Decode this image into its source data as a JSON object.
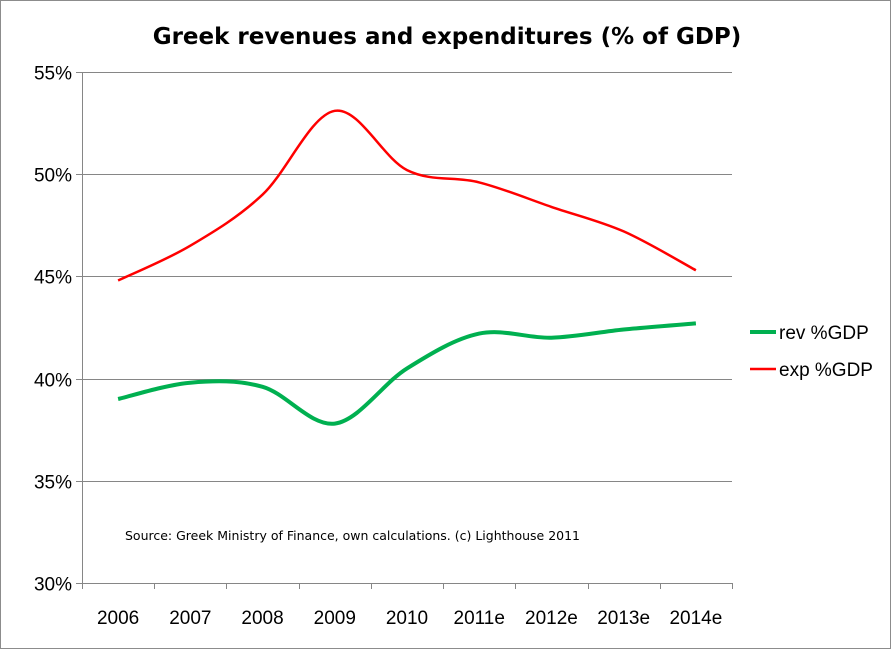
{
  "chart_data": {
    "type": "line",
    "title": "Greek revenues and expenditures (% of GDP)",
    "xlabel": "",
    "ylabel": "",
    "categories": [
      "2006",
      "2007",
      "2008",
      "2009",
      "2010",
      "2011e",
      "2012e",
      "2013e",
      "2014e"
    ],
    "ylim": [
      30,
      55
    ],
    "yticks": [
      30,
      35,
      40,
      45,
      50,
      55
    ],
    "ytick_labels": [
      "30%",
      "35%",
      "40%",
      "45%",
      "50%",
      "55%"
    ],
    "grid": true,
    "legend_position": "right",
    "smooth": true,
    "series": [
      {
        "name": "rev %GDP",
        "color": "#00b050",
        "values": [
          39.0,
          39.8,
          39.6,
          37.8,
          40.5,
          42.2,
          42.0,
          42.4,
          42.7
        ]
      },
      {
        "name": "exp %GDP",
        "color": "#ff0000",
        "values": [
          44.8,
          46.5,
          49.0,
          53.1,
          50.2,
          49.6,
          48.4,
          47.2,
          45.3
        ]
      }
    ],
    "annotation": "Source: Greek Ministry of Finance, own calculations. (c) Lighthouse 2011"
  }
}
